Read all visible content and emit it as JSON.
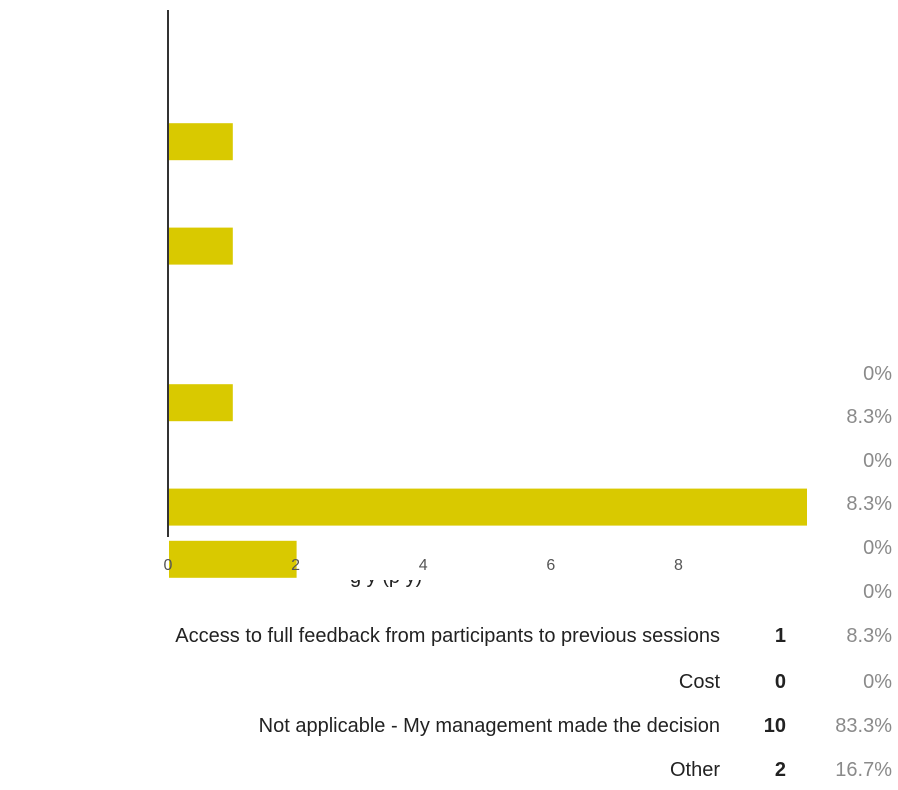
{
  "chart_data": {
    "type": "bar",
    "orientation": "horizontal",
    "title": "",
    "xlabel": "",
    "ylabel": "",
    "xlim": [
      0,
      10
    ],
    "xticks": [
      0,
      2,
      4,
      6,
      8
    ],
    "bar_color": "#d9c900",
    "values": [
      0,
      1,
      0,
      1,
      0,
      0,
      1,
      0,
      10,
      2
    ]
  },
  "right_column_percents": [
    "0%",
    "8.3%",
    "0%",
    "8.3%",
    "0%",
    "0%"
  ],
  "cut_off_axis_text": "g     y (p                          y)",
  "legend_rows": [
    {
      "label": "Access to full feedback from participants to previous sessions",
      "count": "1",
      "percent": "8.3%"
    },
    {
      "label": "Cost",
      "count": "0",
      "percent": "0%"
    },
    {
      "label": "Not applicable - My management made the decision",
      "count": "10",
      "percent": "83.3%"
    },
    {
      "label": "Other",
      "count": "2",
      "percent": "16.7%"
    }
  ]
}
